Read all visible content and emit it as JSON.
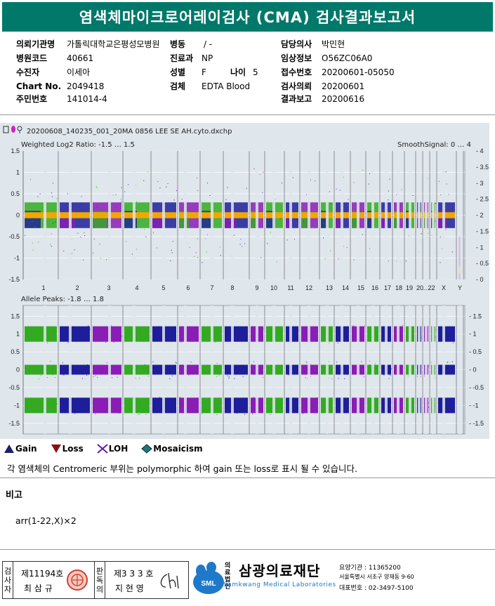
{
  "title": "염색체마이크로어레이검사 (CMA) 검사결과보고서",
  "info": {
    "hospital_label": "의뢰기관명",
    "hospital_value": "가톨릭대학교은평성모병원",
    "ward_label": "병동",
    "ward_value": "/ -",
    "doctor_label": "담당의사",
    "doctor_value": "박민현",
    "code_label": "병원코드",
    "code_value": "40661",
    "dept_label": "진료과",
    "dept_value": "NP",
    "clinical_label": "임상정보",
    "clinical_value": "O56ZC06A0",
    "patient_label": "수진자",
    "patient_value": "이세아",
    "sex_label": "성별",
    "sex_value": "F",
    "age_label": "나이",
    "age_value": "5",
    "receipt_label": "접수번호",
    "receipt_value": "20200601-05050",
    "chart_label": "Chart No.",
    "chart_value": "2049418",
    "specimen_label": "검체",
    "specimen_value": "EDTA Blood",
    "request_label": "검사의뢰",
    "request_value": "20200601",
    "id_label": "주민번호",
    "id_value": "141014-4",
    "report_label": "결과보고",
    "report_value": "20200616"
  },
  "panel": {
    "filename": "20200608_140235_001_20MA 0856 LEE SE AH.cyto.dxchp",
    "top_label": "Weighted Log2 Ratio: -1.5 … 1.5",
    "smooth_label": "SmoothSignal: 0 … 4",
    "bottom_label": "Allele Peaks: -1.8 … 1.8",
    "top_left_ticks": [
      "1.5",
      "1",
      "0.5",
      "0",
      "-0.5",
      "-1",
      "-1.5"
    ],
    "top_right_ticks": [
      "4",
      "3.5",
      "3",
      "2.5",
      "2",
      "1.5",
      "1",
      "0.5",
      "0"
    ],
    "bottom_left_ticks": [
      "1.5",
      "1",
      "0.5",
      "0",
      "-0.5",
      "-1",
      "-1.5"
    ],
    "bottom_right_ticks": [
      "1.5",
      "1",
      "0.5",
      "0",
      "-0.5",
      "-1",
      "-1.5"
    ],
    "chromosomes": [
      "1",
      "2",
      "3",
      "4",
      "5",
      "6",
      "7",
      "8",
      "9",
      "10",
      "11",
      "12",
      "13",
      "14",
      "15",
      "16",
      "17",
      "18",
      "19",
      "20",
      "21",
      "22",
      "X",
      "Y"
    ],
    "chrom_labels": [
      "1",
      "2",
      "3",
      "4",
      "5",
      "6",
      "7",
      "8",
      "9",
      "10",
      "11",
      "12",
      "13",
      "14",
      "15",
      "16",
      "17",
      "18",
      "19",
      "20",
      "…22",
      "X",
      "Y"
    ],
    "colors": {
      "gain": "#1e1e9a",
      "purple": "#8a1db5",
      "green": "#33aa22",
      "orange": "#f0a800",
      "grid": "#ffffff",
      "bg": "#dfe6ec"
    }
  },
  "legend": {
    "gain": "Gain",
    "loss": "Loss",
    "loh": "LOH",
    "mosaicism": "Mosaicism"
  },
  "note": "각 염색체의 Centromeric 부위는 polymorphic 하여 gain 또는 loss로 표시 될 수 있습니다.",
  "remark_heading": "비고",
  "remark_text": "arr(1-22,X)×2",
  "footer": {
    "tester_label": "검사자",
    "tester_no": "제11194호",
    "tester_name": "최 삼 규",
    "confirmer_label": "판독의",
    "confirmer_no": "제3 3 3 호",
    "confirmer_name": "지 현 영",
    "org_prefix": "의료법인",
    "org_name": "삼광의료재단",
    "org_en": "Samkwang Medical Laboratories",
    "logo_text": "SML",
    "agency": "요양기관 : 11365200",
    "address": "서울특별시 서초구 양재동 9-60",
    "phone": "대표번호 : 02-3497-5100"
  }
}
